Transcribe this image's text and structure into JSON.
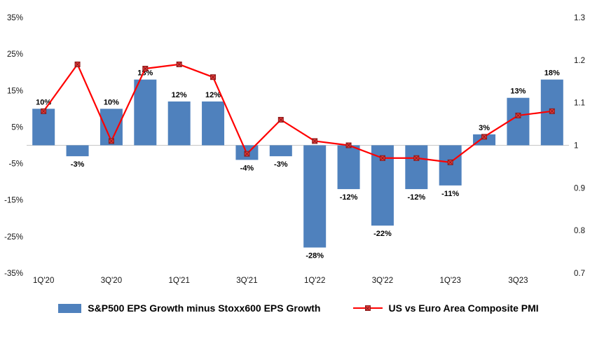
{
  "chart_data": {
    "type": "combo",
    "background": "#FFFFFF",
    "grid": "zero-line-only",
    "legend_position": "bottom",
    "x_tick_labels": [
      "1Q'20",
      "3Q'20",
      "1Q'21",
      "3Q'21",
      "1Q'22",
      "3Q'22",
      "1Q'23",
      "3Q23"
    ],
    "x_tick_every": 2,
    "left_axis": {
      "min": -35,
      "max": 35,
      "tick_values": [
        35,
        25,
        15,
        5,
        -5,
        -15,
        -25,
        -35
      ],
      "tick_labels": [
        "35%",
        "25%",
        "15%",
        "5%",
        "-5%",
        "-15%",
        "-25%",
        "-35%"
      ]
    },
    "right_axis": {
      "min": 0.7,
      "max": 1.3,
      "tick_values": [
        1.3,
        1.2,
        1.1,
        1.0,
        0.9,
        0.8,
        0.7
      ],
      "tick_labels": [
        "1.3",
        "1.2",
        "1.1",
        "1",
        "0.9",
        "0.8",
        "0.7"
      ]
    },
    "series": [
      {
        "name": "S&P500 EPS Growth minus Stoxx600 EPS Growth",
        "type": "bar",
        "axis": "left",
        "color": "#4F81BD",
        "values": [
          10,
          -3,
          10,
          18,
          12,
          12,
          -4,
          -3,
          -28,
          -12,
          -22,
          -12,
          -11,
          3,
          13,
          18
        ],
        "data_labels": [
          "10%",
          "-3%",
          "10%",
          "18%",
          "12%",
          "12%",
          "-4%",
          "-3%",
          "-28%",
          "-12%",
          "-22%",
          "-12%",
          "-11%",
          "3%",
          "13%",
          "18%"
        ]
      },
      {
        "name": "US vs Euro Area Composite PMI",
        "type": "line",
        "axis": "right",
        "color": "#FF0000",
        "marker": "x-square",
        "marker_fill": "#E23A3A",
        "marker_stroke": "#8B1A1A",
        "values": [
          1.08,
          1.19,
          1.01,
          1.18,
          1.19,
          1.16,
          0.98,
          1.06,
          1.01,
          1.0,
          0.97,
          0.97,
          0.96,
          1.02,
          1.07,
          1.08
        ]
      }
    ]
  }
}
